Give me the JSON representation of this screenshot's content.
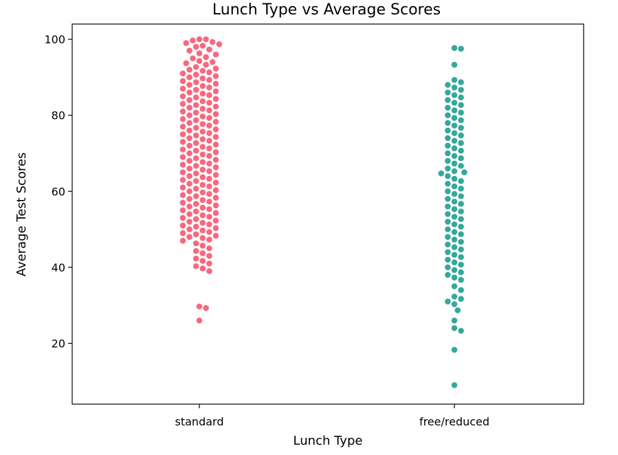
{
  "chart_data": {
    "type": "scatter",
    "subtype": "swarm",
    "title": "Lunch Type vs Average Scores",
    "xlabel": "Lunch Type",
    "ylabel": "Average Test Scores",
    "categories": [
      "standard",
      "free/reduced"
    ],
    "ylim": [
      4,
      104
    ],
    "yticks": [
      20,
      40,
      60,
      80,
      100
    ],
    "grid": false,
    "colors": {
      "standard": "#f7697f",
      "free/reduced": "#35a89b"
    },
    "series": [
      {
        "name": "standard",
        "values": [
          100,
          100,
          99.7,
          99.3,
          99,
          98.7,
          98.3,
          98,
          97.3,
          97,
          96.3,
          96,
          95.3,
          95,
          94.3,
          94,
          93.7,
          93.3,
          92.7,
          92.3,
          92,
          91.7,
          91.3,
          91,
          90.7,
          90.3,
          90,
          89.7,
          89.3,
          89,
          88.7,
          88.3,
          88,
          87.7,
          87.3,
          87,
          86.7,
          86.3,
          86,
          85.7,
          85.3,
          85,
          84.7,
          84.3,
          84,
          83.7,
          83.3,
          83,
          82.7,
          82.3,
          82,
          81.7,
          81.3,
          81,
          80.7,
          80.3,
          80,
          79.7,
          79.3,
          79,
          78.7,
          78.3,
          78,
          77.7,
          77.3,
          77,
          76.7,
          76.3,
          76,
          75.7,
          75.3,
          75,
          74.7,
          74.3,
          74,
          73.7,
          73.3,
          73,
          72.7,
          72.3,
          72,
          71.7,
          71.3,
          71,
          70.7,
          70.3,
          70,
          69.7,
          69.3,
          69,
          68.7,
          68.3,
          68,
          67.7,
          67.3,
          67,
          66.7,
          66.3,
          66,
          65.7,
          65.3,
          65,
          64.7,
          64.3,
          64,
          63.7,
          63.3,
          63,
          62.7,
          62.3,
          62,
          61.7,
          61.3,
          61,
          60.7,
          60.3,
          60,
          59.7,
          59.3,
          59,
          58.7,
          58.3,
          58,
          57.7,
          57.3,
          57,
          56.7,
          56.3,
          56,
          55.7,
          55.3,
          55,
          54.7,
          54.3,
          54,
          53.7,
          53.3,
          53,
          52.7,
          52.3,
          52,
          51.7,
          51.3,
          51,
          50.7,
          50.3,
          50,
          49.7,
          49.3,
          49,
          48.7,
          48.3,
          48,
          47.7,
          47.3,
          47,
          46.3,
          45.7,
          45,
          44.3,
          43.7,
          43,
          42.3,
          41.7,
          41,
          40.3,
          39.7,
          39,
          29.7,
          29.3,
          26
        ]
      },
      {
        "name": "free/reduced",
        "values": [
          97.7,
          97.5,
          93.3,
          89.3,
          88.7,
          88,
          87.3,
          86.7,
          86,
          85.3,
          84.7,
          84,
          83.3,
          82.7,
          82,
          81.3,
          80.7,
          80,
          79.3,
          78.7,
          78,
          77.3,
          76.7,
          76,
          75.3,
          74.7,
          74,
          73.3,
          72.7,
          72,
          71.3,
          70.7,
          70,
          69.3,
          68.7,
          68,
          67.3,
          66.7,
          66,
          65.3,
          65,
          64.7,
          64,
          63.3,
          62.7,
          62,
          61.3,
          60.7,
          60,
          59.3,
          58.7,
          58,
          57.3,
          56.7,
          56,
          55.3,
          54.7,
          54,
          53.3,
          52.7,
          52,
          51.3,
          50.7,
          50,
          49.3,
          48.7,
          48,
          47.3,
          46.7,
          46,
          45.3,
          44.7,
          44,
          43.3,
          42.7,
          42,
          41.3,
          40.7,
          40,
          39.3,
          38.7,
          38,
          37.3,
          36.7,
          35,
          34,
          32.3,
          31.7,
          31,
          30.3,
          28.7,
          26,
          24,
          23.3,
          18.3,
          9
        ]
      }
    ]
  }
}
